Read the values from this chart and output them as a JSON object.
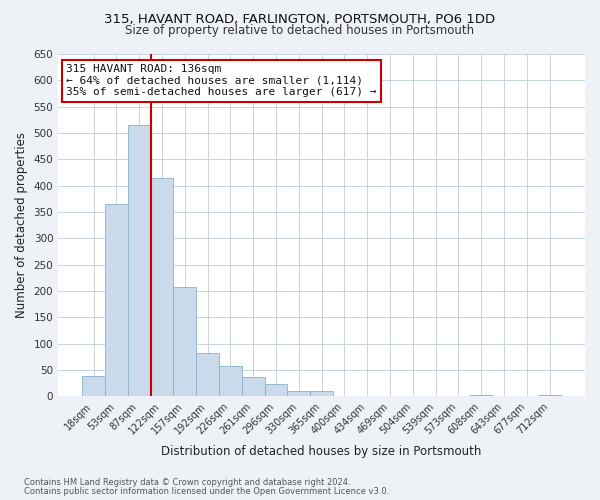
{
  "title_line1": "315, HAVANT ROAD, FARLINGTON, PORTSMOUTH, PO6 1DD",
  "title_line2": "Size of property relative to detached houses in Portsmouth",
  "xlabel": "Distribution of detached houses by size in Portsmouth",
  "ylabel": "Number of detached properties",
  "bar_labels": [
    "18sqm",
    "53sqm",
    "87sqm",
    "122sqm",
    "157sqm",
    "192sqm",
    "226sqm",
    "261sqm",
    "296sqm",
    "330sqm",
    "365sqm",
    "400sqm",
    "434sqm",
    "469sqm",
    "504sqm",
    "539sqm",
    "573sqm",
    "608sqm",
    "643sqm",
    "677sqm",
    "712sqm"
  ],
  "bar_heights": [
    38,
    365,
    515,
    415,
    207,
    83,
    57,
    37,
    24,
    10,
    10,
    0,
    0,
    0,
    0,
    0,
    0,
    3,
    0,
    0,
    3
  ],
  "bar_color": "#c9daea",
  "bar_edge_color": "#8ab0cc",
  "vline_color": "#cc0000",
  "vline_bar_index": 3,
  "ylim": [
    0,
    650
  ],
  "yticks": [
    0,
    50,
    100,
    150,
    200,
    250,
    300,
    350,
    400,
    450,
    500,
    550,
    600,
    650
  ],
  "annotation_title": "315 HAVANT ROAD: 136sqm",
  "annotation_line1": "← 64% of detached houses are smaller (1,114)",
  "annotation_line2": "35% of semi-detached houses are larger (617) →",
  "footer_line1": "Contains HM Land Registry data © Crown copyright and database right 2024.",
  "footer_line2": "Contains public sector information licensed under the Open Government Licence v3.0.",
  "bg_color": "#eef2f7",
  "plot_bg_color": "#ffffff",
  "grid_color": "#c8d4e0"
}
